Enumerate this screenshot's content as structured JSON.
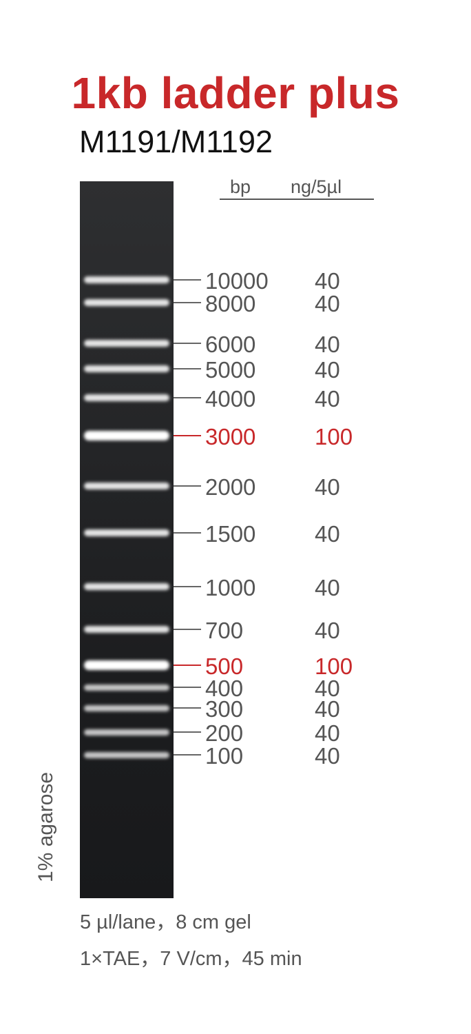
{
  "title": "1kb ladder plus",
  "subtitle": "M1191/M1192",
  "header": {
    "bp": "bp",
    "ng": "ng/5µl"
  },
  "colors": {
    "highlight": "#c8282a",
    "text": "#555555",
    "gel": "#1c1d1f"
  },
  "bands": [
    {
      "bp": "10000",
      "ng": "40",
      "highlight": false
    },
    {
      "bp": "8000",
      "ng": "40",
      "highlight": false
    },
    {
      "bp": "6000",
      "ng": "40",
      "highlight": false
    },
    {
      "bp": "5000",
      "ng": "40",
      "highlight": false
    },
    {
      "bp": "4000",
      "ng": "40",
      "highlight": false
    },
    {
      "bp": "3000",
      "ng": "100",
      "highlight": true
    },
    {
      "bp": "2000",
      "ng": "40",
      "highlight": false
    },
    {
      "bp": "1500",
      "ng": "40",
      "highlight": false
    },
    {
      "bp": "1000",
      "ng": "40",
      "highlight": false
    },
    {
      "bp": "700",
      "ng": "40",
      "highlight": false
    },
    {
      "bp": "500",
      "ng": "100",
      "highlight": true
    },
    {
      "bp": "400",
      "ng": "40",
      "highlight": false
    },
    {
      "bp": "300",
      "ng": "40",
      "highlight": false
    },
    {
      "bp": "200",
      "ng": "40",
      "highlight": false
    },
    {
      "bp": "100",
      "ng": "40",
      "highlight": false
    }
  ],
  "side_label": "1% agarose",
  "footer": {
    "line1": "5 µl/lane，8 cm gel",
    "line2": "1×TAE，7 V/cm，45 min"
  }
}
